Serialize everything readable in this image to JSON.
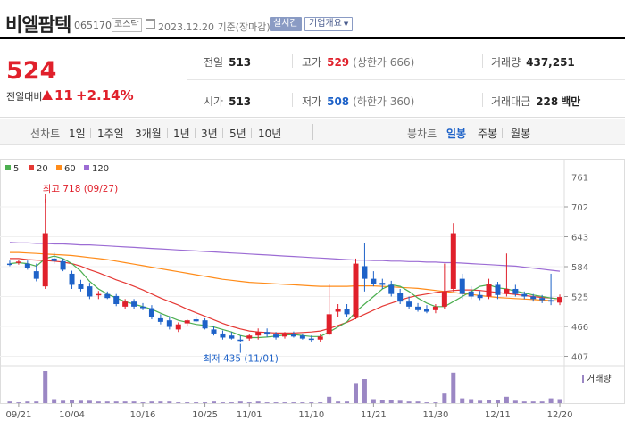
{
  "header": {
    "stock_name": "비엘팜텍",
    "stock_code": "065170",
    "market": "코스닥",
    "date_text": "2023.12.20  기준(장마감)",
    "realtime_label": "실시간",
    "company_label": "기업개요",
    "icon": "calendar-icon"
  },
  "quote": {
    "price": "524",
    "change_label": "전일대비",
    "change_value": "11",
    "change_pct": "+2.14%",
    "prev_close_label": "전일",
    "prev_close": "513",
    "high_label": "고가",
    "high": "529",
    "upper_limit": "(상한가 666)",
    "volume_label": "거래량",
    "volume": "437,251",
    "open_label": "시가",
    "open": "513",
    "low_label": "저가",
    "low": "508",
    "lower_limit": "(하한가 360)",
    "amount_label": "거래대금",
    "amount": "228",
    "amount_unit": "백만",
    "colors": {
      "up": "#e0202b",
      "down": "#1e62c8"
    }
  },
  "periods": {
    "line_label": "선차트",
    "line_items": [
      "1일",
      "1주일",
      "3개월",
      "1년",
      "3년",
      "5년",
      "10년"
    ],
    "candle_label": "봉차트",
    "candle_items": [
      "일봉",
      "주봉",
      "월봉"
    ],
    "active_candle": "일봉"
  },
  "chart_data": {
    "type": "candlestick",
    "legend": [
      {
        "name": "5",
        "color": "#4caf50"
      },
      {
        "name": "20",
        "color": "#e53935"
      },
      {
        "name": "60",
        "color": "#ff8c1a"
      },
      {
        "name": "120",
        "color": "#9c6cd4"
      }
    ],
    "y_ticks": [
      761,
      702,
      643,
      584,
      525,
      466,
      407
    ],
    "ylim": [
      392,
      776
    ],
    "x_ticks": [
      {
        "label": "09/21",
        "i": 1
      },
      {
        "label": "10/04",
        "i": 7
      },
      {
        "label": "10/16",
        "i": 15
      },
      {
        "label": "10/25",
        "i": 22
      },
      {
        "label": "11/01",
        "i": 27
      },
      {
        "label": "11/10",
        "i": 34
      },
      {
        "label": "11/21",
        "i": 41
      },
      {
        "label": "11/30",
        "i": 48
      },
      {
        "label": "12/11",
        "i": 55
      },
      {
        "label": "12/20",
        "i": 62
      }
    ],
    "high_annotation": {
      "text": "최고 718 (09/27)",
      "i": 4,
      "value": 718
    },
    "low_annotation": {
      "text": "최저 435 (11/01)",
      "i": 26,
      "value": 435
    },
    "volume_label": "거래량",
    "candles": [
      {
        "o": 590,
        "h": 596,
        "l": 585,
        "c": 588,
        "v": 2
      },
      {
        "o": 592,
        "h": 598,
        "l": 588,
        "c": 594,
        "v": 1
      },
      {
        "o": 590,
        "h": 596,
        "l": 578,
        "c": 582,
        "v": 2
      },
      {
        "o": 575,
        "h": 590,
        "l": 555,
        "c": 560,
        "v": 2
      },
      {
        "o": 545,
        "h": 718,
        "l": 540,
        "c": 650,
        "v": 40
      },
      {
        "o": 600,
        "h": 612,
        "l": 590,
        "c": 595,
        "v": 5
      },
      {
        "o": 595,
        "h": 600,
        "l": 575,
        "c": 578,
        "v": 3
      },
      {
        "o": 570,
        "h": 576,
        "l": 540,
        "c": 548,
        "v": 4
      },
      {
        "o": 550,
        "h": 558,
        "l": 535,
        "c": 540,
        "v": 3
      },
      {
        "o": 545,
        "h": 552,
        "l": 520,
        "c": 525,
        "v": 3
      },
      {
        "o": 528,
        "h": 536,
        "l": 520,
        "c": 530,
        "v": 2
      },
      {
        "o": 530,
        "h": 535,
        "l": 520,
        "c": 522,
        "v": 2
      },
      {
        "o": 526,
        "h": 530,
        "l": 506,
        "c": 510,
        "v": 2
      },
      {
        "o": 505,
        "h": 520,
        "l": 500,
        "c": 515,
        "v": 2
      },
      {
        "o": 515,
        "h": 520,
        "l": 500,
        "c": 505,
        "v": 2
      },
      {
        "o": 505,
        "h": 512,
        "l": 498,
        "c": 502,
        "v": 1
      },
      {
        "o": 502,
        "h": 508,
        "l": 480,
        "c": 485,
        "v": 2
      },
      {
        "o": 482,
        "h": 490,
        "l": 470,
        "c": 475,
        "v": 2
      },
      {
        "o": 478,
        "h": 486,
        "l": 460,
        "c": 465,
        "v": 2
      },
      {
        "o": 460,
        "h": 474,
        "l": 455,
        "c": 470,
        "v": 1
      },
      {
        "o": 472,
        "h": 480,
        "l": 466,
        "c": 478,
        "v": 1
      },
      {
        "o": 480,
        "h": 486,
        "l": 474,
        "c": 476,
        "v": 1
      },
      {
        "o": 478,
        "h": 482,
        "l": 460,
        "c": 462,
        "v": 1
      },
      {
        "o": 460,
        "h": 466,
        "l": 448,
        "c": 452,
        "v": 2
      },
      {
        "o": 452,
        "h": 458,
        "l": 440,
        "c": 444,
        "v": 1
      },
      {
        "o": 448,
        "h": 455,
        "l": 440,
        "c": 442,
        "v": 1
      },
      {
        "o": 440,
        "h": 448,
        "l": 435,
        "c": 438,
        "v": 2
      },
      {
        "o": 442,
        "h": 450,
        "l": 438,
        "c": 448,
        "v": 1
      },
      {
        "o": 448,
        "h": 462,
        "l": 440,
        "c": 455,
        "v": 2
      },
      {
        "o": 455,
        "h": 462,
        "l": 445,
        "c": 450,
        "v": 1
      },
      {
        "o": 450,
        "h": 455,
        "l": 440,
        "c": 444,
        "v": 1
      },
      {
        "o": 446,
        "h": 455,
        "l": 442,
        "c": 452,
        "v": 1
      },
      {
        "o": 450,
        "h": 456,
        "l": 444,
        "c": 446,
        "v": 1
      },
      {
        "o": 448,
        "h": 452,
        "l": 440,
        "c": 442,
        "v": 1
      },
      {
        "o": 442,
        "h": 448,
        "l": 436,
        "c": 440,
        "v": 1
      },
      {
        "o": 440,
        "h": 450,
        "l": 436,
        "c": 446,
        "v": 1
      },
      {
        "o": 450,
        "h": 550,
        "l": 448,
        "c": 490,
        "v": 8
      },
      {
        "o": 495,
        "h": 510,
        "l": 485,
        "c": 500,
        "v": 2
      },
      {
        "o": 500,
        "h": 510,
        "l": 485,
        "c": 490,
        "v": 2
      },
      {
        "o": 485,
        "h": 600,
        "l": 480,
        "c": 590,
        "v": 24
      },
      {
        "o": 585,
        "h": 630,
        "l": 535,
        "c": 560,
        "v": 30
      },
      {
        "o": 560,
        "h": 575,
        "l": 545,
        "c": 550,
        "v": 5
      },
      {
        "o": 552,
        "h": 560,
        "l": 540,
        "c": 548,
        "v": 4
      },
      {
        "o": 548,
        "h": 556,
        "l": 525,
        "c": 530,
        "v": 4
      },
      {
        "o": 532,
        "h": 540,
        "l": 510,
        "c": 515,
        "v": 3
      },
      {
        "o": 515,
        "h": 525,
        "l": 500,
        "c": 505,
        "v": 2
      },
      {
        "o": 505,
        "h": 512,
        "l": 495,
        "c": 498,
        "v": 2
      },
      {
        "o": 500,
        "h": 508,
        "l": 492,
        "c": 495,
        "v": 1
      },
      {
        "o": 498,
        "h": 510,
        "l": 492,
        "c": 505,
        "v": 1
      },
      {
        "o": 505,
        "h": 590,
        "l": 500,
        "c": 535,
        "v": 12
      },
      {
        "o": 540,
        "h": 670,
        "l": 535,
        "c": 650,
        "v": 38
      },
      {
        "o": 560,
        "h": 570,
        "l": 520,
        "c": 530,
        "v": 6
      },
      {
        "o": 535,
        "h": 545,
        "l": 520,
        "c": 525,
        "v": 5
      },
      {
        "o": 528,
        "h": 536,
        "l": 518,
        "c": 522,
        "v": 3
      },
      {
        "o": 525,
        "h": 560,
        "l": 520,
        "c": 550,
        "v": 4
      },
      {
        "o": 548,
        "h": 554,
        "l": 520,
        "c": 528,
        "v": 4
      },
      {
        "o": 530,
        "h": 610,
        "l": 525,
        "c": 540,
        "v": 8
      },
      {
        "o": 540,
        "h": 548,
        "l": 525,
        "c": 530,
        "v": 3
      },
      {
        "o": 530,
        "h": 535,
        "l": 520,
        "c": 525,
        "v": 2
      },
      {
        "o": 525,
        "h": 530,
        "l": 515,
        "c": 520,
        "v": 2
      },
      {
        "o": 522,
        "h": 528,
        "l": 512,
        "c": 518,
        "v": 2
      },
      {
        "o": 518,
        "h": 570,
        "l": 508,
        "c": 515,
        "v": 6
      },
      {
        "o": 513,
        "h": 529,
        "l": 508,
        "c": 524,
        "v": 5
      }
    ],
    "ma": {
      "5": [
        590,
        592,
        590,
        585,
        600,
        605,
        600,
        590,
        575,
        555,
        540,
        530,
        522,
        515,
        510,
        505,
        500,
        492,
        485,
        478,
        474,
        470,
        468,
        465,
        460,
        455,
        448,
        444,
        444,
        445,
        447,
        449,
        450,
        448,
        446,
        446,
        455,
        465,
        475,
        495,
        510,
        525,
        540,
        548,
        545,
        535,
        522,
        512,
        505,
        505,
        515,
        525,
        535,
        545,
        548,
        542,
        540,
        536,
        532,
        528,
        525,
        522,
        520
      ],
      "20": [
        600,
        600,
        598,
        597,
        596,
        595,
        593,
        590,
        585,
        578,
        572,
        565,
        558,
        552,
        545,
        538,
        530,
        522,
        515,
        508,
        500,
        493,
        486,
        479,
        472,
        466,
        461,
        457,
        455,
        454,
        453,
        453,
        453,
        454,
        455,
        457,
        462,
        468,
        474,
        482,
        490,
        498,
        506,
        512,
        518,
        523,
        527,
        530,
        533,
        535,
        537,
        538,
        538,
        537,
        535,
        533,
        531,
        529,
        527,
        525,
        523,
        522,
        520
      ],
      "60": [
        612,
        612,
        611,
        610,
        609,
        608,
        607,
        606,
        604,
        602,
        600,
        598,
        595,
        592,
        589,
        586,
        583,
        580,
        577,
        574,
        571,
        568,
        565,
        562,
        559,
        557,
        555,
        553,
        552,
        551,
        550,
        549,
        548,
        547,
        546,
        545,
        545,
        545,
        545,
        546,
        546,
        546,
        545,
        544,
        543,
        542,
        541,
        539,
        537,
        535,
        533,
        531,
        529,
        527,
        525,
        523,
        522,
        521,
        520,
        519,
        518,
        517,
        516
      ],
      "120": [
        632,
        631,
        631,
        630,
        630,
        629,
        629,
        628,
        627,
        627,
        626,
        625,
        624,
        623,
        622,
        621,
        620,
        619,
        618,
        617,
        616,
        615,
        614,
        613,
        612,
        611,
        610,
        609,
        608,
        607,
        606,
        605,
        604,
        603,
        602,
        601,
        600,
        599,
        598,
        597,
        597,
        596,
        596,
        595,
        595,
        594,
        594,
        593,
        593,
        592,
        592,
        591,
        590,
        589,
        588,
        587,
        586,
        585,
        583,
        581,
        579,
        577,
        575
      ]
    }
  }
}
